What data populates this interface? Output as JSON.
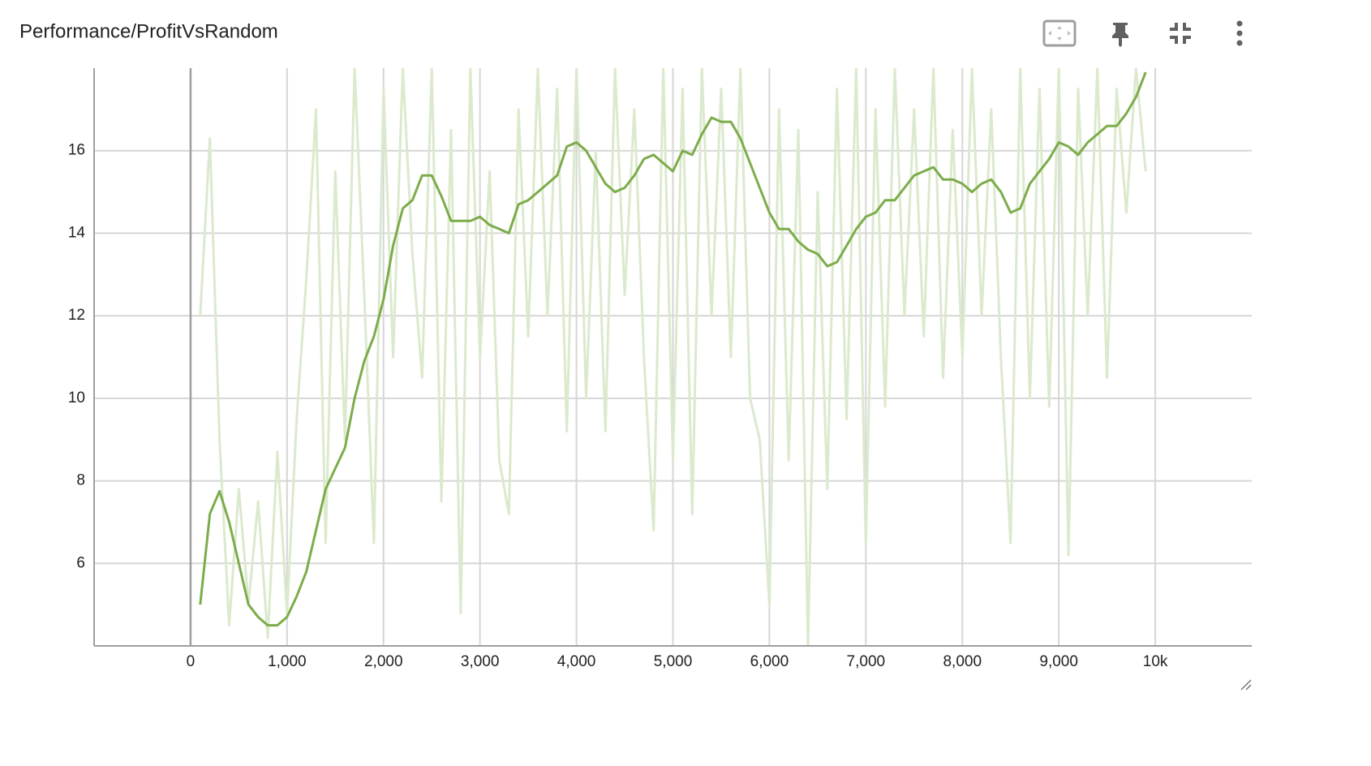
{
  "chart_data": {
    "type": "line",
    "title": "Performance/ProfitVsRandom",
    "x": [
      100,
      200,
      300,
      400,
      500,
      600,
      700,
      800,
      900,
      1000,
      1100,
      1200,
      1300,
      1400,
      1500,
      1600,
      1700,
      1800,
      1900,
      2000,
      2100,
      2200,
      2300,
      2400,
      2500,
      2600,
      2700,
      2800,
      2900,
      3000,
      3100,
      3200,
      3300,
      3400,
      3500,
      3600,
      3700,
      3800,
      3900,
      4000,
      4100,
      4200,
      4300,
      4400,
      4500,
      4600,
      4700,
      4800,
      4900,
      5000,
      5100,
      5200,
      5300,
      5400,
      5500,
      5600,
      5700,
      5800,
      5900,
      6000,
      6100,
      6200,
      6300,
      6400,
      6500,
      6600,
      6700,
      6800,
      6900,
      7000,
      7100,
      7200,
      7300,
      7400,
      7500,
      7600,
      7700,
      7800,
      7900,
      8000,
      8100,
      8200,
      8300,
      8400,
      8500,
      8600,
      8700,
      8800,
      8900,
      9000,
      9100,
      9200,
      9300,
      9400,
      9500,
      9600,
      9700,
      9800,
      9900
    ],
    "series": [
      {
        "color": "#dbe9cd",
        "values": [
          12.0,
          16.3,
          9.0,
          4.5,
          7.8,
          5.0,
          7.5,
          4.2,
          8.7,
          4.8,
          9.5,
          12.9,
          17.0,
          6.5,
          15.5,
          9.0,
          18.0,
          12.5,
          6.5,
          17.5,
          11.0,
          18.0,
          13.5,
          10.5,
          18.0,
          7.5,
          16.5,
          4.8,
          18.0,
          11.0,
          15.5,
          8.5,
          7.2,
          17.0,
          11.5,
          18.0,
          12.0,
          17.5,
          9.2,
          18.0,
          10.0,
          16.0,
          9.2,
          18.0,
          12.5,
          17.0,
          11.0,
          6.8,
          18.0,
          8.5,
          17.5,
          7.2,
          18.0,
          12.0,
          17.5,
          11.0,
          18.0,
          10.0,
          9.0,
          5.0,
          17.0,
          8.5,
          16.5,
          4.0,
          15.0,
          7.8,
          17.5,
          9.5,
          18.0,
          6.5,
          17.0,
          9.8,
          18.0,
          12.0,
          17.0,
          11.5,
          18.0,
          10.5,
          16.5,
          11.0,
          18.0,
          12.0,
          17.0,
          11.0,
          6.5,
          18.0,
          10.0,
          17.5,
          9.8,
          18.0,
          6.2,
          17.5,
          12.0,
          18.0,
          10.5,
          17.5,
          14.5,
          18.0,
          15.5
        ]
      },
      {
        "color": "#7cac4a",
        "values": [
          5.0,
          7.2,
          7.75,
          7.0,
          6.0,
          5.0,
          4.7,
          4.5,
          4.5,
          4.7,
          5.2,
          5.8,
          6.8,
          7.8,
          8.3,
          8.8,
          10.0,
          10.9,
          11.5,
          12.4,
          13.7,
          14.6,
          14.8,
          15.4,
          15.4,
          14.9,
          14.3,
          14.3,
          14.3,
          14.4,
          14.2,
          14.1,
          14.0,
          14.7,
          14.8,
          15.0,
          15.2,
          15.4,
          16.1,
          16.2,
          16.0,
          15.6,
          15.2,
          15.0,
          15.1,
          15.4,
          15.8,
          15.9,
          15.7,
          15.5,
          16.0,
          15.9,
          16.4,
          16.8,
          16.7,
          16.7,
          16.3,
          15.7,
          15.1,
          14.5,
          14.1,
          14.1,
          13.8,
          13.6,
          13.5,
          13.2,
          13.3,
          13.7,
          14.1,
          14.4,
          14.5,
          14.8,
          14.8,
          15.1,
          15.4,
          15.5,
          15.6,
          15.3,
          15.3,
          15.2,
          15.0,
          15.2,
          15.3,
          15.0,
          14.5,
          14.6,
          15.2,
          15.5,
          15.8,
          16.2,
          16.1,
          15.9,
          16.2,
          16.4,
          16.6,
          16.6,
          16.9,
          17.3,
          17.9
        ]
      }
    ],
    "xlim": [
      -1000,
      11000
    ],
    "ylim": [
      4,
      18
    ],
    "xticks": [
      0,
      {
        "value": 1000,
        "label": "1,000"
      },
      {
        "value": 2000,
        "label": "2,000"
      },
      {
        "value": 3000,
        "label": "3,000"
      },
      {
        "value": 4000,
        "label": "4,000"
      },
      {
        "value": 5000,
        "label": "5,000"
      },
      {
        "value": 6000,
        "label": "6,000"
      },
      {
        "value": 7000,
        "label": "7,000"
      },
      {
        "value": 8000,
        "label": "8,000"
      },
      {
        "value": 9000,
        "label": "9,000"
      },
      {
        "value": 10000,
        "label": "10k"
      }
    ],
    "yticks": [
      6,
      8,
      10,
      12,
      14,
      16
    ],
    "grid": true
  }
}
